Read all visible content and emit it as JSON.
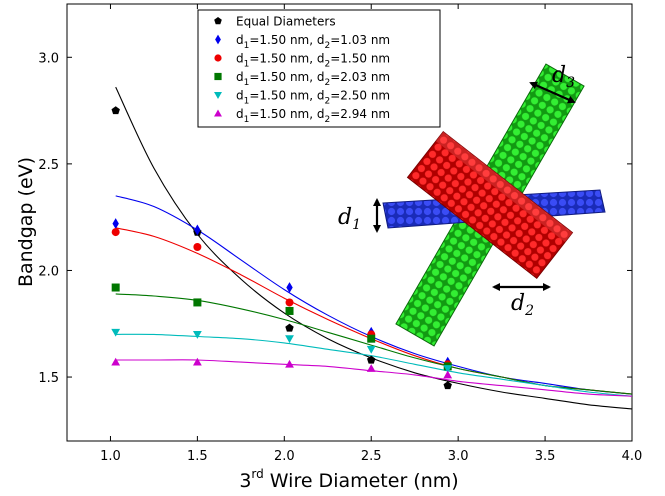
{
  "chart_data": {
    "type": "scatter",
    "xlabel": {
      "prefix": "3",
      "sup": "rd",
      "rest": " Wire Diameter (nm)"
    },
    "ylabel": "Bandgap (eV)",
    "xlim": [
      0.75,
      4.0
    ],
    "ylim": [
      1.2,
      3.25
    ],
    "xticks": [
      1.0,
      1.5,
      2.0,
      2.5,
      3.0,
      3.5,
      4.0
    ],
    "xtick_labels": [
      "1.0",
      "1.5",
      "2.0",
      "2.5",
      "3.0",
      "3.5",
      "4.0"
    ],
    "yticks": [
      1.5,
      2.0,
      2.5,
      3.0
    ],
    "ytick_labels": [
      "1.5",
      "2.0",
      "2.5",
      "3.0"
    ],
    "grid": false,
    "legend_position": "top-center",
    "series": [
      {
        "legend": "Equal Diameters",
        "d1": "",
        "d2": "",
        "color": "#000000",
        "marker": "pentagon",
        "x": [
          1.03,
          1.5,
          2.03,
          2.5,
          2.94
        ],
        "y": [
          2.75,
          2.18,
          1.73,
          1.58,
          1.46
        ],
        "fit": [
          [
            1.03,
            2.86
          ],
          [
            1.25,
            2.48
          ],
          [
            1.5,
            2.17
          ],
          [
            1.75,
            1.96
          ],
          [
            2.0,
            1.8
          ],
          [
            2.25,
            1.68
          ],
          [
            2.5,
            1.59
          ],
          [
            2.75,
            1.52
          ],
          [
            3.0,
            1.47
          ],
          [
            3.25,
            1.43
          ],
          [
            3.5,
            1.4
          ],
          [
            3.75,
            1.37
          ],
          [
            4.0,
            1.35
          ]
        ]
      },
      {
        "legend": "",
        "d1": "1.50 nm",
        "d2": "1.03 nm",
        "color": "#0000ee",
        "marker": "diamond",
        "x": [
          1.03,
          1.5,
          2.03,
          2.5,
          2.94
        ],
        "y": [
          2.22,
          2.19,
          1.92,
          1.71,
          1.57
        ],
        "fit": [
          [
            1.03,
            2.35
          ],
          [
            1.25,
            2.3
          ],
          [
            1.5,
            2.19
          ],
          [
            1.75,
            2.05
          ],
          [
            2.0,
            1.91
          ],
          [
            2.25,
            1.79
          ],
          [
            2.5,
            1.69
          ],
          [
            2.75,
            1.61
          ],
          [
            3.0,
            1.55
          ],
          [
            3.25,
            1.5
          ],
          [
            3.5,
            1.47
          ],
          [
            3.75,
            1.44
          ],
          [
            4.0,
            1.42
          ]
        ]
      },
      {
        "legend": "",
        "d1": "1.50 nm",
        "d2": "1.50 nm",
        "color": "#ee0000",
        "marker": "circle",
        "x": [
          1.03,
          1.5,
          2.03,
          2.5,
          2.94
        ],
        "y": [
          2.18,
          2.11,
          1.85,
          1.7,
          1.56
        ],
        "fit": [
          [
            1.03,
            2.2
          ],
          [
            1.25,
            2.16
          ],
          [
            1.5,
            2.08
          ],
          [
            1.75,
            1.98
          ],
          [
            2.0,
            1.87
          ],
          [
            2.25,
            1.77
          ],
          [
            2.5,
            1.68
          ],
          [
            2.75,
            1.6
          ],
          [
            3.0,
            1.54
          ],
          [
            3.25,
            1.5
          ],
          [
            3.5,
            1.46
          ],
          [
            3.75,
            1.44
          ],
          [
            4.0,
            1.42
          ]
        ]
      },
      {
        "legend": "",
        "d1": "1.50 nm",
        "d2": "2.03 nm",
        "color": "#007700",
        "marker": "square",
        "x": [
          1.03,
          1.5,
          2.03,
          2.5,
          2.94
        ],
        "y": [
          1.92,
          1.85,
          1.81,
          1.68,
          1.55
        ],
        "fit": [
          [
            1.03,
            1.89
          ],
          [
            1.25,
            1.88
          ],
          [
            1.5,
            1.86
          ],
          [
            1.75,
            1.82
          ],
          [
            2.0,
            1.77
          ],
          [
            2.25,
            1.71
          ],
          [
            2.5,
            1.65
          ],
          [
            2.75,
            1.59
          ],
          [
            3.0,
            1.54
          ],
          [
            3.25,
            1.5
          ],
          [
            3.5,
            1.46
          ],
          [
            3.75,
            1.44
          ],
          [
            4.0,
            1.42
          ]
        ]
      },
      {
        "legend": "",
        "d1": "1.50 nm",
        "d2": "2.50 nm",
        "color": "#00bbbb",
        "marker": "triangle-down",
        "x": [
          1.03,
          1.5,
          2.03,
          2.5,
          2.94
        ],
        "y": [
          1.71,
          1.7,
          1.68,
          1.63,
          1.54
        ],
        "fit": [
          [
            1.03,
            1.7
          ],
          [
            1.25,
            1.7
          ],
          [
            1.5,
            1.69
          ],
          [
            1.75,
            1.68
          ],
          [
            2.0,
            1.66
          ],
          [
            2.25,
            1.63
          ],
          [
            2.5,
            1.6
          ],
          [
            2.75,
            1.56
          ],
          [
            3.0,
            1.52
          ],
          [
            3.25,
            1.49
          ],
          [
            3.5,
            1.46
          ],
          [
            3.75,
            1.43
          ],
          [
            4.0,
            1.41
          ]
        ]
      },
      {
        "legend": "",
        "d1": "1.50 nm",
        "d2": "2.94 nm",
        "color": "#cc00cc",
        "marker": "triangle-up",
        "x": [
          1.03,
          1.5,
          2.03,
          2.5,
          2.94
        ],
        "y": [
          1.57,
          1.57,
          1.56,
          1.54,
          1.51
        ],
        "fit": [
          [
            1.03,
            1.58
          ],
          [
            1.25,
            1.58
          ],
          [
            1.5,
            1.58
          ],
          [
            1.75,
            1.57
          ],
          [
            2.0,
            1.56
          ],
          [
            2.25,
            1.55
          ],
          [
            2.5,
            1.53
          ],
          [
            2.75,
            1.51
          ],
          [
            3.0,
            1.48
          ],
          [
            3.25,
            1.46
          ],
          [
            3.5,
            1.44
          ],
          [
            3.75,
            1.42
          ],
          [
            4.0,
            1.41
          ]
        ]
      }
    ],
    "inset": {
      "wire_colors": {
        "d1": "#2233dd",
        "d2": "#ee1111",
        "d3": "#11dd11"
      },
      "labels": {
        "d1": "d",
        "d1_sub": "1",
        "d2": "d",
        "d2_sub": "2",
        "d3": "d",
        "d3_sub": "3"
      }
    }
  }
}
